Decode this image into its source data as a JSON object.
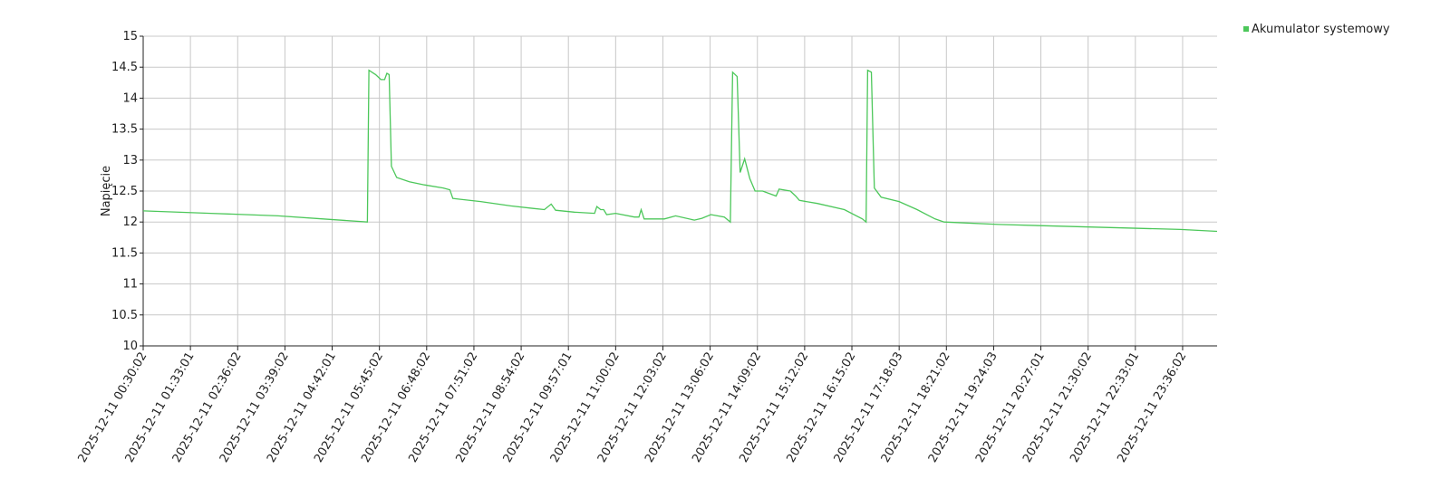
{
  "chart_data": {
    "type": "line",
    "y_label": "Napięcie",
    "grid": true,
    "legend": "top-right",
    "ylim": [
      10,
      15
    ],
    "yticks": [
      10,
      10.5,
      11,
      11.5,
      12,
      12.5,
      13,
      13.5,
      14,
      14.5,
      15
    ],
    "xlim": [
      "2025-12-11 00:30:02",
      "2025-12-12 00:22:00"
    ],
    "xticks": [
      "2025-12-11 00:30:02",
      "2025-12-11 01:33:01",
      "2025-12-11 02:36:02",
      "2025-12-11 03:39:02",
      "2025-12-11 04:42:01",
      "2025-12-11 05:45:02",
      "2025-12-11 06:48:02",
      "2025-12-11 07:51:02",
      "2025-12-11 08:54:02",
      "2025-12-11 09:57:01",
      "2025-12-11 11:00:02",
      "2025-12-11 12:03:02",
      "2025-12-11 13:06:02",
      "2025-12-11 14:09:02",
      "2025-12-11 15:12:02",
      "2025-12-11 16:15:02",
      "2025-12-11 17:18:03",
      "2025-12-11 18:21:02",
      "2025-12-11 19:24:03",
      "2025-12-11 20:27:01",
      "2025-12-11 21:30:02",
      "2025-12-11 22:33:01",
      "2025-12-11 23:36:02"
    ],
    "x": [
      "2025-12-11 00:30:02",
      "2025-12-11 02:00:00",
      "2025-12-11 03:30:00",
      "2025-12-11 04:30:00",
      "2025-12-11 05:29:00",
      "2025-12-11 05:31:00",
      "2025-12-11 05:40:00",
      "2025-12-11 05:47:00",
      "2025-12-11 05:52:00",
      "2025-12-11 05:55:00",
      "2025-12-11 05:58:00",
      "2025-12-11 06:01:00",
      "2025-12-11 06:08:00",
      "2025-12-11 06:25:00",
      "2025-12-11 06:45:00",
      "2025-12-11 07:10:00",
      "2025-12-11 07:19:00",
      "2025-12-11 07:23:00",
      "2025-12-11 08:00:00",
      "2025-12-11 08:40:00",
      "2025-12-11 09:10:00",
      "2025-12-11 09:25:00",
      "2025-12-11 09:34:00",
      "2025-12-11 09:40:00",
      "2025-12-11 10:05:00",
      "2025-12-11 10:32:00",
      "2025-12-11 10:35:00",
      "2025-12-11 10:40:00",
      "2025-12-11 10:44:00",
      "2025-12-11 10:48:00",
      "2025-12-11 11:00:00",
      "2025-12-11 11:25:00",
      "2025-12-11 11:31:00",
      "2025-12-11 11:34:00",
      "2025-12-11 11:38:00",
      "2025-12-11 12:05:00",
      "2025-12-11 12:20:00",
      "2025-12-11 12:45:00",
      "2025-12-11 12:55:00",
      "2025-12-11 13:07:00",
      "2025-12-11 13:25:00",
      "2025-12-11 13:33:00",
      "2025-12-11 13:36:00",
      "2025-12-11 13:42:00",
      "2025-12-11 13:46:00",
      "2025-12-11 13:52:00",
      "2025-12-11 13:59:00",
      "2025-12-11 14:06:00",
      "2025-12-11 14:16:00",
      "2025-12-11 14:34:00",
      "2025-12-11 14:38:00",
      "2025-12-11 14:53:00",
      "2025-12-11 15:00:00",
      "2025-12-11 15:05:00",
      "2025-12-11 15:29:00",
      "2025-12-11 16:05:00",
      "2025-12-11 16:29:00",
      "2025-12-11 16:34:00",
      "2025-12-11 16:36:00",
      "2025-12-11 16:41:00",
      "2025-12-11 16:45:00",
      "2025-12-11 16:54:00",
      "2025-12-11 17:18:00",
      "2025-12-11 17:42:00",
      "2025-12-11 18:06:00",
      "2025-12-11 18:18:00",
      "2025-12-11 19:31:00",
      "2025-12-11 21:32:00",
      "2025-12-11 23:33:00",
      "2025-12-12 00:22:00"
    ],
    "series": [
      {
        "name": "Akumulator systemowy",
        "color": "#4cc75a",
        "values": [
          12.18,
          12.14,
          12.1,
          12.05,
          12.0,
          14.45,
          14.38,
          14.3,
          14.3,
          14.4,
          14.38,
          12.9,
          12.72,
          12.65,
          12.6,
          12.55,
          12.52,
          12.38,
          12.33,
          12.26,
          12.22,
          12.2,
          12.29,
          12.19,
          12.16,
          12.14,
          12.25,
          12.2,
          12.2,
          12.12,
          12.14,
          12.08,
          12.08,
          12.2,
          12.05,
          12.05,
          12.1,
          12.03,
          12.06,
          12.12,
          12.08,
          12.0,
          14.42,
          14.35,
          12.8,
          13.02,
          12.7,
          12.5,
          12.5,
          12.42,
          12.53,
          12.5,
          12.42,
          12.35,
          12.3,
          12.2,
          12.05,
          12.0,
          14.45,
          14.42,
          12.55,
          12.4,
          12.33,
          12.2,
          12.05,
          12.0,
          11.96,
          11.92,
          11.88,
          11.85
        ]
      }
    ]
  }
}
